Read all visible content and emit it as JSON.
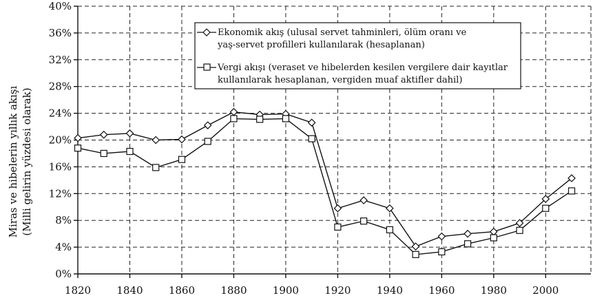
{
  "chart_data": {
    "type": "line",
    "title": "",
    "xlabel": "",
    "ylabel": "Miras ve hibelerin yıllık akışı",
    "ylabel2": "(Milli gelirin yüzdesi olarak)",
    "x": [
      1820,
      1830,
      1840,
      1850,
      1860,
      1870,
      1880,
      1890,
      1900,
      1910,
      1920,
      1930,
      1940,
      1950,
      1960,
      1970,
      1980,
      1990,
      2000,
      2010
    ],
    "xlim": [
      1820,
      2010
    ],
    "ylim": [
      0,
      40
    ],
    "xticks": [
      "1820",
      "1840",
      "1860",
      "1880",
      "1900",
      "1920",
      "1940",
      "1960",
      "1980",
      "2000"
    ],
    "yticks": [
      "0%",
      "4%",
      "8%",
      "12%",
      "16%",
      "20%",
      "24%",
      "28%",
      "32%",
      "36%",
      "40%"
    ],
    "grid": true,
    "legend_position": "top-center",
    "series": [
      {
        "name": "Ekonomik akış (ulusal servet tahminleri, ölüm oranı ve",
        "name_line2": "yaş-servet profilleri kullanılarak (hesaplanan)",
        "marker": "diamond",
        "values": [
          20.3,
          20.8,
          21.0,
          20.0,
          20.1,
          22.2,
          24.2,
          23.8,
          23.9,
          22.6,
          9.8,
          11.0,
          9.8,
          4.1,
          5.6,
          6.0,
          6.3,
          7.6,
          11.2,
          14.3
        ]
      },
      {
        "name": "Vergi akışı (veraset ve hibelerden kesilen vergilere dair kayıtlar",
        "name_line2": "kullanılarak hesaplanan, vergiden muaf aktifler dahil)",
        "marker": "square",
        "values": [
          18.8,
          18.0,
          18.3,
          15.9,
          17.1,
          19.8,
          23.2,
          23.1,
          23.2,
          20.2,
          7.0,
          7.9,
          6.6,
          2.9,
          3.3,
          4.5,
          5.4,
          6.5,
          9.8,
          12.4
        ]
      }
    ]
  }
}
